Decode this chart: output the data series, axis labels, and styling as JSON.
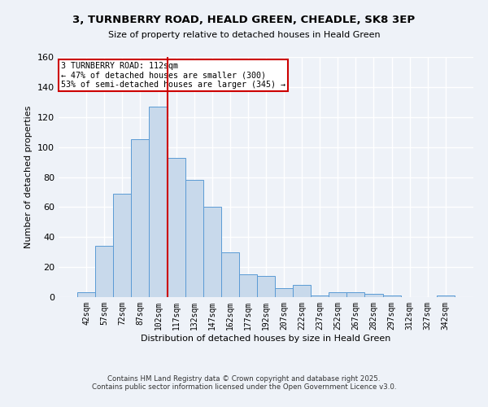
{
  "title1": "3, TURNBERRY ROAD, HEALD GREEN, CHEADLE, SK8 3EP",
  "title2": "Size of property relative to detached houses in Heald Green",
  "xlabel": "Distribution of detached houses by size in Heald Green",
  "ylabel": "Number of detached properties",
  "bar_labels": [
    "42sqm",
    "57sqm",
    "72sqm",
    "87sqm",
    "102sqm",
    "117sqm",
    "132sqm",
    "147sqm",
    "162sqm",
    "177sqm",
    "192sqm",
    "207sqm",
    "222sqm",
    "237sqm",
    "252sqm",
    "267sqm",
    "282sqm",
    "297sqm",
    "312sqm",
    "327sqm",
    "342sqm"
  ],
  "bar_values": [
    3,
    34,
    69,
    105,
    127,
    93,
    78,
    60,
    30,
    15,
    14,
    6,
    8,
    1,
    3,
    3,
    2,
    1,
    0,
    0,
    1
  ],
  "bar_color": "#c8d9eb",
  "bar_edgecolor": "#5b9bd5",
  "vline_x": 4.5,
  "vline_color": "#cc0000",
  "annotation_text": "3 TURNBERRY ROAD: 112sqm\n← 47% of detached houses are smaller (300)\n53% of semi-detached houses are larger (345) →",
  "annotation_box_color": "#ffffff",
  "annotation_box_edgecolor": "#cc0000",
  "ylim": [
    0,
    160
  ],
  "yticks": [
    0,
    20,
    40,
    60,
    80,
    100,
    120,
    140,
    160
  ],
  "footer1": "Contains HM Land Registry data © Crown copyright and database right 2025.",
  "footer2": "Contains public sector information licensed under the Open Government Licence v3.0.",
  "bg_color": "#eef2f8",
  "grid_color": "#ffffff"
}
